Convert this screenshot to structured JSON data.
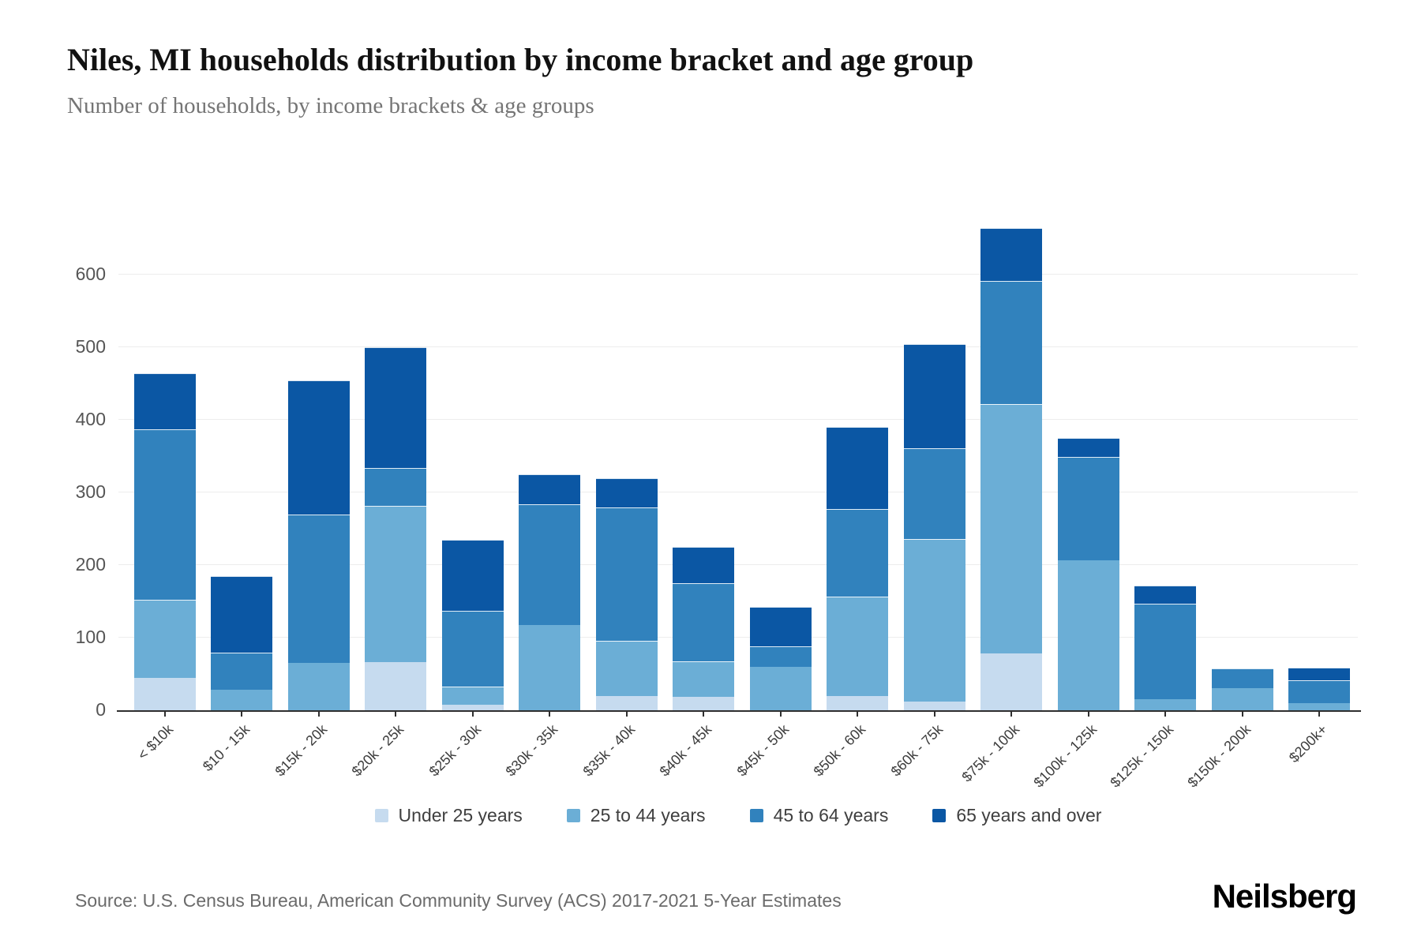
{
  "header": {
    "title": "Niles, MI households distribution by income bracket and age group",
    "subtitle": "Number of households, by income brackets & age groups"
  },
  "chart_data": {
    "type": "bar",
    "stacked": true,
    "title": "Niles, MI households distribution by income bracket and age group",
    "subtitle": "Number of households, by income brackets & age groups",
    "xlabel": "",
    "ylabel": "",
    "grid": true,
    "legend_position": "bottom",
    "background": "#ffffff",
    "categories": [
      "< $10k",
      "$10 - 15k",
      "$15k - 20k",
      "$20k - 25k",
      "$25k - 30k",
      "$30k - 35k",
      "$35k - 40k",
      "$40k - 45k",
      "$45k - 50k",
      "$50k - 60k",
      "$60k - 75k",
      "$75k - 100k",
      "$100k - 125k",
      "$125k - 150k",
      "$150k - 200k",
      "$200k+"
    ],
    "series": [
      {
        "name": "Under 25 years",
        "color": "#c6dbef",
        "values": [
          45,
          0,
          0,
          66,
          8,
          0,
          20,
          19,
          0,
          20,
          12,
          78,
          0,
          0,
          0,
          0
        ]
      },
      {
        "name": "25 to 44 years",
        "color": "#6baed6",
        "values": [
          107,
          28,
          65,
          216,
          25,
          117,
          76,
          48,
          60,
          137,
          224,
          344,
          207,
          15,
          30,
          10
        ]
      },
      {
        "name": "45 to 64 years",
        "color": "#3182bd",
        "values": [
          235,
          51,
          205,
          52,
          104,
          167,
          184,
          108,
          28,
          120,
          125,
          170,
          142,
          132,
          28,
          31
        ]
      },
      {
        "name": "65 years and over",
        "color": "#0b57a4",
        "values": [
          78,
          106,
          185,
          166,
          98,
          41,
          40,
          50,
          55,
          113,
          144,
          73,
          26,
          25,
          0,
          18
        ]
      }
    ],
    "totals": [
      465,
      185,
      455,
      500,
      235,
      325,
      320,
      225,
      143,
      390,
      505,
      665,
      375,
      172,
      58,
      59
    ],
    "yticks": [
      0,
      100,
      200,
      300,
      400,
      500,
      600
    ],
    "ylim": [
      0,
      707
    ],
    "gridline_color": "#ededed",
    "axis_color": "#2f2f2f",
    "ytick_color": "#555555",
    "xtick_color": "#3c3c3c"
  },
  "footer": {
    "source": "Source: U.S. Census Bureau, American Community Survey (ACS) 2017-2021 5-Year Estimates",
    "brand": "Neilsberg"
  }
}
